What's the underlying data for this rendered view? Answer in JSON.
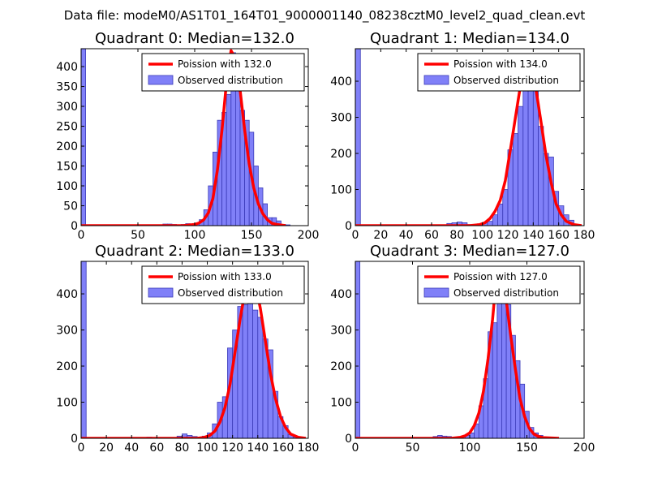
{
  "figure": {
    "suptitle": "Data file: modeM0/AS1T01_164T01_9000001140_08238cztM0_level2_quad_clean.evt"
  },
  "chart_data": [
    {
      "type": "bar",
      "title": "Quadrant 0: Median=132.0",
      "xlim": [
        0,
        200
      ],
      "ylim": [
        0,
        445
      ],
      "xticks": [
        0,
        50,
        100,
        150,
        200
      ],
      "yticks": [
        0,
        50,
        100,
        150,
        200,
        250,
        300,
        350,
        400
      ],
      "bin_width": 4,
      "legend": [
        "Poission with 132.0",
        "Observed distribution"
      ],
      "legend_position": "upper right",
      "bars": [
        [
          0,
          445
        ],
        [
          72,
          4
        ],
        [
          76,
          4
        ],
        [
          80,
          3
        ],
        [
          88,
          3
        ],
        [
          92,
          5
        ],
        [
          96,
          4
        ],
        [
          100,
          6
        ],
        [
          104,
          15
        ],
        [
          108,
          40
        ],
        [
          112,
          100
        ],
        [
          116,
          185
        ],
        [
          120,
          265
        ],
        [
          124,
          285
        ],
        [
          128,
          330
        ],
        [
          132,
          435
        ],
        [
          136,
          410
        ],
        [
          140,
          290
        ],
        [
          144,
          265
        ],
        [
          148,
          235
        ],
        [
          152,
          150
        ],
        [
          156,
          95
        ],
        [
          160,
          55
        ],
        [
          164,
          20
        ],
        [
          168,
          20
        ],
        [
          172,
          12
        ],
        [
          176,
          3
        ],
        [
          180,
          2
        ]
      ],
      "curve": [
        [
          0,
          0
        ],
        [
          90,
          0
        ],
        [
          100,
          3
        ],
        [
          104,
          7
        ],
        [
          108,
          15
        ],
        [
          112,
          32
        ],
        [
          116,
          68
        ],
        [
          120,
          140
        ],
        [
          124,
          240
        ],
        [
          128,
          360
        ],
        [
          132,
          440
        ],
        [
          136,
          420
        ],
        [
          140,
          340
        ],
        [
          144,
          240
        ],
        [
          148,
          155
        ],
        [
          152,
          95
        ],
        [
          156,
          55
        ],
        [
          160,
          30
        ],
        [
          164,
          15
        ],
        [
          168,
          6
        ],
        [
          172,
          3
        ],
        [
          180,
          0
        ]
      ]
    },
    {
      "type": "bar",
      "title": "Quadrant 1: Median=134.0",
      "xlim": [
        0,
        180
      ],
      "ylim": [
        0,
        490
      ],
      "xticks": [
        0,
        20,
        40,
        60,
        80,
        100,
        120,
        140,
        160,
        180
      ],
      "yticks": [
        0,
        100,
        200,
        300,
        400
      ],
      "bin_width": 4,
      "legend": [
        "Poission with 134.0",
        "Observed distribution"
      ],
      "legend_position": "upper right",
      "bars": [
        [
          0,
          490
        ],
        [
          72,
          6
        ],
        [
          76,
          8
        ],
        [
          80,
          10
        ],
        [
          84,
          8
        ],
        [
          88,
          3
        ],
        [
          96,
          5
        ],
        [
          100,
          8
        ],
        [
          104,
          12
        ],
        [
          108,
          30
        ],
        [
          112,
          60
        ],
        [
          116,
          100
        ],
        [
          120,
          210
        ],
        [
          124,
          255
        ],
        [
          128,
          330
        ],
        [
          132,
          440
        ],
        [
          136,
          460
        ],
        [
          140,
          420
        ],
        [
          144,
          275
        ],
        [
          148,
          200
        ],
        [
          152,
          190
        ],
        [
          156,
          95
        ],
        [
          160,
          55
        ],
        [
          164,
          30
        ],
        [
          168,
          15
        ]
      ],
      "curve": [
        [
          0,
          0
        ],
        [
          90,
          0
        ],
        [
          98,
          3
        ],
        [
          102,
          8
        ],
        [
          106,
          20
        ],
        [
          110,
          40
        ],
        [
          114,
          70
        ],
        [
          118,
          125
        ],
        [
          122,
          210
        ],
        [
          126,
          300
        ],
        [
          130,
          390
        ],
        [
          134,
          460
        ],
        [
          138,
          440
        ],
        [
          142,
          380
        ],
        [
          146,
          290
        ],
        [
          150,
          195
        ],
        [
          154,
          120
        ],
        [
          158,
          60
        ],
        [
          162,
          30
        ],
        [
          166,
          12
        ],
        [
          172,
          3
        ],
        [
          178,
          0
        ]
      ]
    },
    {
      "type": "bar",
      "title": "Quadrant 2: Median=133.0",
      "xlim": [
        0,
        180
      ],
      "ylim": [
        0,
        490
      ],
      "xticks": [
        0,
        20,
        40,
        60,
        80,
        100,
        120,
        140,
        160,
        180
      ],
      "yticks": [
        0,
        100,
        200,
        300,
        400
      ],
      "bin_width": 4,
      "legend": [
        "Poission with 133.0",
        "Observed distribution"
      ],
      "legend_position": "upper right",
      "bars": [
        [
          0,
          490
        ],
        [
          52,
          3
        ],
        [
          76,
          6
        ],
        [
          80,
          12
        ],
        [
          84,
          8
        ],
        [
          88,
          5
        ],
        [
          96,
          6
        ],
        [
          100,
          15
        ],
        [
          104,
          40
        ],
        [
          108,
          100
        ],
        [
          112,
          115
        ],
        [
          116,
          250
        ],
        [
          120,
          300
        ],
        [
          124,
          365
        ],
        [
          128,
          370
        ],
        [
          132,
          410
        ],
        [
          136,
          355
        ],
        [
          140,
          335
        ],
        [
          144,
          275
        ],
        [
          148,
          245
        ],
        [
          152,
          130
        ],
        [
          156,
          60
        ],
        [
          160,
          35
        ],
        [
          164,
          10
        ],
        [
          168,
          3
        ],
        [
          172,
          2
        ]
      ],
      "curve": [
        [
          0,
          0
        ],
        [
          92,
          0
        ],
        [
          98,
          3
        ],
        [
          102,
          8
        ],
        [
          106,
          20
        ],
        [
          110,
          45
        ],
        [
          114,
          85
        ],
        [
          118,
          150
        ],
        [
          122,
          240
        ],
        [
          126,
          330
        ],
        [
          130,
          410
        ],
        [
          134,
          470
        ],
        [
          138,
          430
        ],
        [
          142,
          360
        ],
        [
          146,
          270
        ],
        [
          150,
          180
        ],
        [
          154,
          110
        ],
        [
          158,
          60
        ],
        [
          162,
          30
        ],
        [
          166,
          12
        ],
        [
          172,
          3
        ],
        [
          178,
          0
        ]
      ]
    },
    {
      "type": "bar",
      "title": "Quadrant 3: Median=127.0",
      "xlim": [
        0,
        200
      ],
      "ylim": [
        0,
        490
      ],
      "xticks": [
        0,
        50,
        100,
        150,
        200
      ],
      "yticks": [
        0,
        100,
        200,
        300,
        400
      ],
      "bin_width": 4,
      "legend": [
        "Poission with 127.0",
        "Observed distribution"
      ],
      "legend_position": "upper right",
      "bars": [
        [
          0,
          490
        ],
        [
          68,
          5
        ],
        [
          72,
          8
        ],
        [
          76,
          6
        ],
        [
          80,
          5
        ],
        [
          88,
          3
        ],
        [
          92,
          4
        ],
        [
          96,
          8
        ],
        [
          100,
          15
        ],
        [
          104,
          40
        ],
        [
          108,
          90
        ],
        [
          112,
          165
        ],
        [
          116,
          295
        ],
        [
          120,
          320
        ],
        [
          124,
          430
        ],
        [
          128,
          400
        ],
        [
          132,
          370
        ],
        [
          136,
          285
        ],
        [
          140,
          215
        ],
        [
          144,
          150
        ],
        [
          148,
          75
        ],
        [
          152,
          30
        ],
        [
          156,
          15
        ],
        [
          160,
          8
        ],
        [
          164,
          3
        ]
      ],
      "curve": [
        [
          0,
          0
        ],
        [
          84,
          0
        ],
        [
          92,
          3
        ],
        [
          96,
          7
        ],
        [
          100,
          15
        ],
        [
          104,
          35
        ],
        [
          108,
          70
        ],
        [
          112,
          130
        ],
        [
          116,
          220
        ],
        [
          120,
          330
        ],
        [
          124,
          470
        ],
        [
          128,
          460
        ],
        [
          132,
          380
        ],
        [
          136,
          280
        ],
        [
          140,
          190
        ],
        [
          144,
          110
        ],
        [
          148,
          60
        ],
        [
          152,
          28
        ],
        [
          156,
          12
        ],
        [
          160,
          5
        ],
        [
          164,
          2
        ],
        [
          178,
          0
        ]
      ]
    }
  ],
  "colors": {
    "bar_fill": "#8080f8",
    "bar_edge": "#3a3ab8",
    "curve": "#ff0000",
    "axis": "#000000",
    "legend_border": "#000000"
  }
}
